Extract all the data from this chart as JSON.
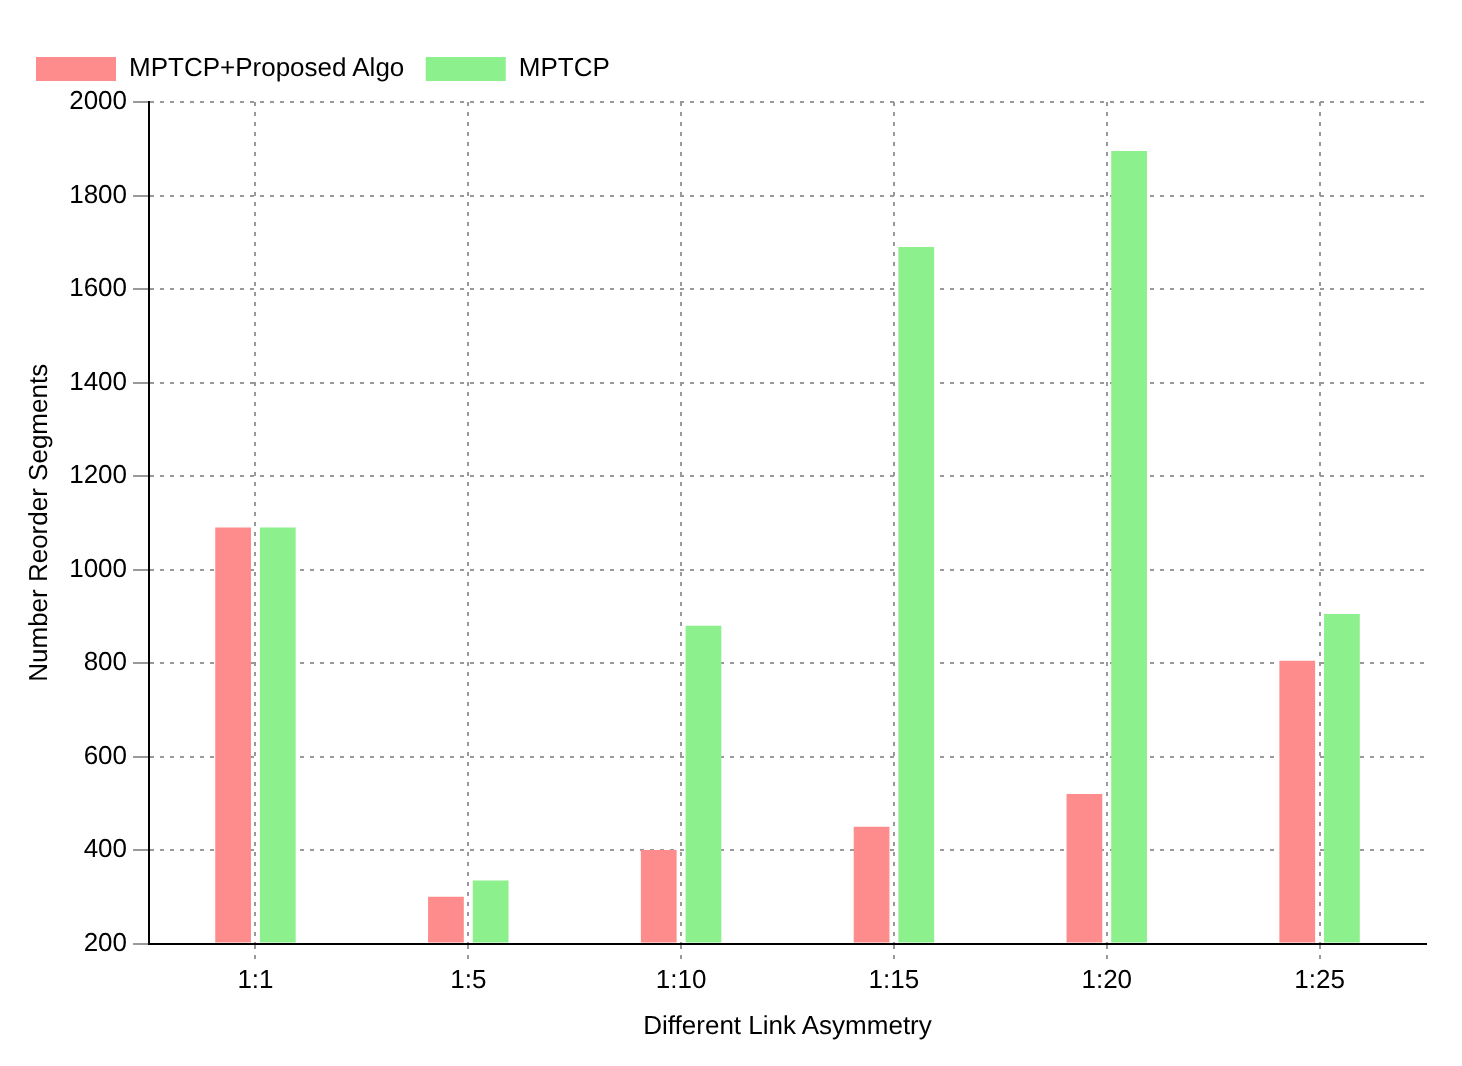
{
  "chart_data": {
    "type": "bar",
    "xlabel": "Different Link Asymmetry",
    "ylabel": "Number Reorder Segments",
    "categories": [
      "1:1",
      "1:5",
      "1:10",
      "1:15",
      "1:20",
      "1:25"
    ],
    "series": [
      {
        "name": "MPTCP+Proposed Algo",
        "color": "#ff8c8c",
        "values": [
          1090,
          300,
          400,
          450,
          520,
          805
        ]
      },
      {
        "name": "MPTCP",
        "color": "#8cf08c",
        "values": [
          1090,
          335,
          880,
          1690,
          1895,
          905
        ]
      }
    ],
    "ylim": [
      200,
      2000
    ],
    "yticks": [
      200,
      400,
      600,
      800,
      1000,
      1200,
      1400,
      1600,
      1800,
      2000
    ],
    "grid": true,
    "legend": "top left"
  }
}
